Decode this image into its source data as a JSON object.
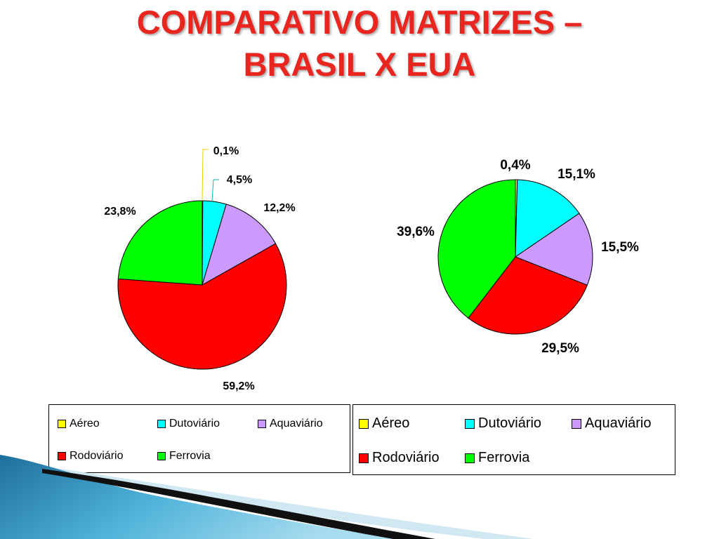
{
  "slide": {
    "title_line1": "COMPARATIVO MATRIZES –",
    "title_line2": "BRASIL X EUA"
  },
  "legend": {
    "items": [
      {
        "label": "Aéreo",
        "color": "#ffff00"
      },
      {
        "label": "Dutoviário",
        "color": "#00ffff"
      },
      {
        "label": "Aquaviário",
        "color": "#cc99ff"
      },
      {
        "label": "Rodoviário",
        "color": "#ff0000"
      },
      {
        "label": "Ferrovia",
        "color": "#00ff00"
      }
    ]
  },
  "chart_data": [
    {
      "type": "pie",
      "title": "",
      "legend_position": "bottom",
      "slices": [
        {
          "name": "Aéreo",
          "value": 0.1,
          "label": "0,1%",
          "color": "#ffff00"
        },
        {
          "name": "Dutoviário",
          "value": 4.5,
          "label": "4,5%",
          "color": "#00ffff"
        },
        {
          "name": "Aquaviário",
          "value": 12.2,
          "label": "12,2%",
          "color": "#cc99ff"
        },
        {
          "name": "Rodoviário",
          "value": 59.2,
          "label": "59,2%",
          "color": "#ff0000"
        },
        {
          "name": "Ferrovia",
          "value": 23.8,
          "label": "23,8%",
          "color": "#00ff00"
        }
      ]
    },
    {
      "type": "pie",
      "title": "",
      "legend_position": "bottom",
      "slices": [
        {
          "name": "Aéreo",
          "value": 0.4,
          "label": "0,4%",
          "color": "#ffff00"
        },
        {
          "name": "Dutoviário",
          "value": 15.1,
          "label": "15,1%",
          "color": "#00ffff"
        },
        {
          "name": "Aquaviário",
          "value": 15.5,
          "label": "15,5%",
          "color": "#cc99ff"
        },
        {
          "name": "Rodoviário",
          "value": 29.5,
          "label": "29,5%",
          "color": "#ff0000"
        },
        {
          "name": "Ferrovia",
          "value": 39.6,
          "label": "39,6%",
          "color": "#00ff00"
        }
      ]
    }
  ]
}
